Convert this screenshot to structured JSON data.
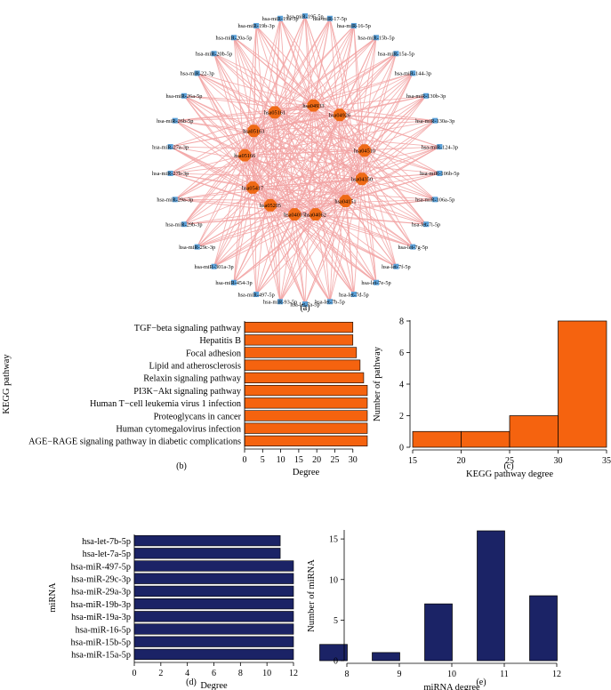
{
  "figure": {
    "panel_labels": [
      "(a)",
      "(b)",
      "(c)",
      "(d)",
      "(e)"
    ]
  },
  "colors": {
    "edge": "#f2a3a3",
    "pathway_node": "#ef6a16",
    "mirna_node": "#5aa0d8",
    "orange_bar": "#f5630f",
    "navy_bar": "#1b2366"
  },
  "chart_data": [
    {
      "type": "network",
      "pathway_nodes": [
        "hsa05205",
        "hsa04933",
        "hsa04926",
        "hsa04510",
        "hsa04350",
        "hsa04151",
        "hsa04062",
        "hsa04015",
        "hsa05417",
        "hsa05166",
        "hsa05163",
        "hsa05161"
      ],
      "mirna_nodes": [
        "hsa-miR-195-5p",
        "hsa-miR-17-5p",
        "hsa-miR-16-5p",
        "hsa-miR-15b-5p",
        "hsa-miR-15a-5p",
        "hsa-miR-144-3p",
        "hsa-miR-130b-3p",
        "hsa-miR-130a-3p",
        "hsa-miR-124-3p",
        "hsa-miR-106b-5p",
        "hsa-miR-106a-5p",
        "hsa-let-7i-5p",
        "hsa-let-7g-5p",
        "hsa-let-7f-5p",
        "hsa-let-7e-5p",
        "hsa-let-7d-5p",
        "hsa-let-7b-5p",
        "hsa-let-7a-5p",
        "hsa-miR-93-5p",
        "hsa-miR-497-5p",
        "hsa-miR-454-3p",
        "hsa-miR-301a-3p",
        "hsa-miR-29c-3p",
        "hsa-miR-29b-3p",
        "hsa-miR-29a-3p",
        "hsa-miR-27b-3p",
        "hsa-miR-27a-3p",
        "hsa-miR-26b-5p",
        "hsa-miR-26a-5p",
        "hsa-miR-22-3p",
        "hsa-miR-20b-5p",
        "hsa-miR-20a-5p",
        "hsa-miR-19b-3p",
        "hsa-miR-19a-3p"
      ]
    },
    {
      "type": "bar",
      "orientation": "horizontal",
      "categories": [
        "TGF−beta signaling pathway",
        "Hepatitis B",
        "Focal adhesion",
        "Lipid and atherosclerosis",
        "Relaxin signaling pathway",
        "PI3K−Akt signaling pathway",
        "Human T−cell leukemia virus 1 infection",
        "Proteoglycans in cancer",
        "Human cytomegalovirus infection",
        "AGE−RAGE signaling pathway in diabetic complications"
      ],
      "values": [
        30,
        30,
        31,
        32,
        33,
        34,
        34,
        34,
        34,
        34
      ],
      "xlabel": "Degree",
      "ylabel": "KEGG pathway",
      "xlim": [
        0,
        34
      ],
      "xticks": [
        0,
        5,
        10,
        15,
        20,
        25,
        30
      ]
    },
    {
      "type": "bar",
      "bins": [
        [
          15,
          20
        ],
        [
          20,
          25
        ],
        [
          25,
          30
        ],
        [
          30,
          35
        ]
      ],
      "values": [
        1,
        1,
        2,
        8
      ],
      "xlabel": "KEGG pathway degree",
      "ylabel": "Number of pathway",
      "xlim": [
        15,
        35
      ],
      "ylim": [
        0,
        8
      ],
      "xticks": [
        15,
        20,
        25,
        30,
        35
      ],
      "yticks": [
        0,
        2,
        4,
        6,
        8
      ]
    },
    {
      "type": "bar",
      "orientation": "horizontal",
      "categories": [
        "hsa-let-7b-5p",
        "hsa-let-7a-5p",
        "hsa-miR-497-5p",
        "hsa-miR-29c-3p",
        "hsa-miR-29a-3p",
        "hsa-miR-19b-3p",
        "hsa-miR-19a-3p",
        "hsa-miR-16-5p",
        "hsa-miR-15b-5p",
        "hsa-miR-15a-5p"
      ],
      "values": [
        11,
        11,
        12,
        12,
        12,
        12,
        12,
        12,
        12,
        12
      ],
      "xlabel": "Degree",
      "ylabel": "miRNA",
      "xlim": [
        0,
        12
      ],
      "xticks": [
        0,
        2,
        4,
        6,
        8,
        10,
        12
      ]
    },
    {
      "type": "bar",
      "x": [
        8,
        9,
        10,
        11,
        12
      ],
      "values": [
        2,
        1,
        7,
        16,
        8
      ],
      "xlabel": "miRNA degree",
      "ylabel": "Number of miRNA",
      "xlim": [
        8,
        12
      ],
      "ylim": [
        0,
        16
      ],
      "xticks": [
        8,
        9,
        10,
        11,
        12
      ],
      "yticks": [
        0,
        5,
        10,
        15
      ]
    }
  ]
}
